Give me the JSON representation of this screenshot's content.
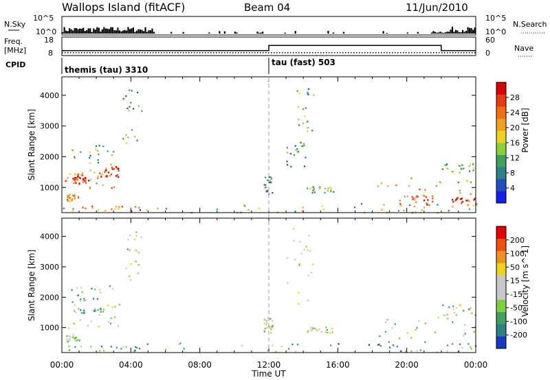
{
  "header": {
    "station": "Wallops Island (fitACF)",
    "beam": "Beam 04",
    "date": "11/Jun/2010"
  },
  "top_panels": {
    "nsky_label": "N.Sky",
    "nsky_ticks": [
      "10^5",
      "10^0"
    ],
    "nsearch_label": "N.Search",
    "nsearch_ticks": [
      "10^5",
      "10^0"
    ],
    "freq_label_1": "Freq.",
    "freq_label_2": "[MHz]",
    "freq_ticks": [
      "18",
      "8"
    ],
    "nave_label": "Nave",
    "nave_ticks": [
      "60",
      "0"
    ],
    "cpid_label": "CPID",
    "cpid_segments": [
      {
        "name": "themis (tau) 3310",
        "start_hour": 0,
        "end_hour": 12
      },
      {
        "name": "tau (fast) 503",
        "start_hour": 12,
        "end_hour": 24
      }
    ],
    "freq_series": [
      [
        0,
        10.5
      ],
      [
        12,
        10.5
      ],
      [
        12,
        13.5
      ],
      [
        22,
        13.5
      ],
      [
        22,
        10.5
      ],
      [
        24,
        10.5
      ]
    ],
    "nave_series": [
      [
        0,
        8
      ],
      [
        24,
        8
      ]
    ]
  },
  "chart_data": [
    {
      "type": "heatmap",
      "panel": "power",
      "ylabel": "Slant Range [km]",
      "xlabel": "",
      "x_ticks": [
        "00:00",
        "04:00",
        "08:00",
        "12:00",
        "16:00",
        "20:00",
        "00:00"
      ],
      "xlim": [
        0,
        24
      ],
      "ylim": [
        180,
        4600
      ],
      "y_ticks": [
        1000,
        2000,
        3000,
        4000
      ],
      "colorbar": {
        "label": "Power [dB]",
        "ticks": [
          "28",
          "24",
          "20",
          "16",
          "12",
          "8",
          "4"
        ],
        "colors": [
          "#1020e8",
          "#2050c0",
          "#2f7f86",
          "#40a060",
          "#8ccf3a",
          "#f0d020",
          "#f0a020",
          "#f07010",
          "#e83a10",
          "#d80000"
        ]
      },
      "regions": [
        {
          "x0": 0.1,
          "x1": 1.2,
          "y0": 1100,
          "y1": 1500,
          "level": 0.75
        },
        {
          "x0": 0.6,
          "x1": 1.6,
          "y0": 1150,
          "y1": 1350,
          "level": 0.9
        },
        {
          "x0": 1.5,
          "x1": 3.2,
          "y0": 1000,
          "y1": 1800,
          "level": 0.6
        },
        {
          "x0": 2.2,
          "x1": 3.4,
          "y0": 1300,
          "y1": 1700,
          "level": 0.85
        },
        {
          "x0": 0.2,
          "x1": 1.0,
          "y0": 550,
          "y1": 800,
          "level": 0.65
        },
        {
          "x0": 0.5,
          "x1": 3.0,
          "y0": 1800,
          "y1": 2400,
          "level": 0.35
        },
        {
          "x0": 3.5,
          "x1": 4.6,
          "y0": 2400,
          "y1": 4200,
          "level": 0.3
        },
        {
          "x0": 0.0,
          "x1": 4.8,
          "y0": 250,
          "y1": 420,
          "level": 0.75
        },
        {
          "x0": 4.8,
          "x1": 18.5,
          "y0": 200,
          "y1": 520,
          "level": 0.45
        },
        {
          "x0": 11.7,
          "x1": 12.2,
          "y0": 800,
          "y1": 1400,
          "level": 0.3
        },
        {
          "x0": 13.0,
          "x1": 14.2,
          "y0": 1700,
          "y1": 2500,
          "level": 0.35
        },
        {
          "x0": 13.6,
          "x1": 14.6,
          "y0": 2800,
          "y1": 4300,
          "level": 0.4
        },
        {
          "x0": 14.2,
          "x1": 15.8,
          "y0": 850,
          "y1": 1050,
          "level": 0.4
        },
        {
          "x0": 18.3,
          "x1": 24.0,
          "y0": 700,
          "y1": 1400,
          "level": 0.65
        },
        {
          "x0": 19.5,
          "x1": 21.5,
          "y0": 400,
          "y1": 800,
          "level": 0.85
        },
        {
          "x0": 22.5,
          "x1": 24.0,
          "y0": 450,
          "y1": 700,
          "level": 0.9
        },
        {
          "x0": 22.0,
          "x1": 24.0,
          "y0": 1400,
          "y1": 1800,
          "level": 0.4
        },
        {
          "x0": 18.5,
          "x1": 24.0,
          "y0": 200,
          "y1": 500,
          "level": 0.5
        }
      ]
    },
    {
      "type": "heatmap",
      "panel": "velocity",
      "ylabel": "Slant Range [km]",
      "xlabel": "Time UT",
      "x_ticks": [
        "00:00",
        "04:00",
        "08:00",
        "12:00",
        "16:00",
        "20:00",
        "00:00"
      ],
      "xlim": [
        0,
        24
      ],
      "ylim": [
        180,
        4600
      ],
      "y_ticks": [
        1000,
        2000,
        3000,
        4000
      ],
      "colorbar": {
        "label": "Velocity [m s^-1]",
        "ticks": [
          "200",
          "100",
          "50",
          "15",
          "-15",
          "-50",
          "-100",
          "-200"
        ],
        "colors": [
          "#1838c8",
          "#2f7f86",
          "#40a060",
          "#7cd040",
          "#c8c8c8",
          "#c8c8c8",
          "#f0d020",
          "#f09020",
          "#f05010",
          "#e00000"
        ]
      },
      "regions": [
        {
          "x0": 0.1,
          "x1": 3.4,
          "y0": 1000,
          "y1": 1800,
          "level": 0.45
        },
        {
          "x0": 0.2,
          "x1": 1.0,
          "y0": 550,
          "y1": 800,
          "level": 0.45
        },
        {
          "x0": 0.5,
          "x1": 3.0,
          "y0": 1800,
          "y1": 2400,
          "level": 0.35
        },
        {
          "x0": 0.6,
          "x1": 2.4,
          "y0": 1500,
          "y1": 1650,
          "level": 0.3
        },
        {
          "x0": 3.5,
          "x1": 4.6,
          "y0": 2400,
          "y1": 4200,
          "level": 0.45
        },
        {
          "x0": 0.0,
          "x1": 4.8,
          "y0": 250,
          "y1": 420,
          "level": 0.3
        },
        {
          "x0": 4.8,
          "x1": 18.5,
          "y0": 200,
          "y1": 520,
          "level": 0.3
        },
        {
          "x0": 11.7,
          "x1": 12.2,
          "y0": 800,
          "y1": 1400,
          "level": 0.45
        },
        {
          "x0": 13.0,
          "x1": 14.6,
          "y0": 1700,
          "y1": 4300,
          "level": 0.45
        },
        {
          "x0": 14.2,
          "x1": 15.8,
          "y0": 850,
          "y1": 1050,
          "level": 0.45
        },
        {
          "x0": 18.3,
          "x1": 24.0,
          "y0": 400,
          "y1": 1400,
          "level": 0.45
        },
        {
          "x0": 22.0,
          "x1": 24.0,
          "y0": 1400,
          "y1": 1800,
          "level": 0.45
        },
        {
          "x0": 18.5,
          "x1": 24.0,
          "y0": 200,
          "y1": 500,
          "level": 0.3
        }
      ]
    }
  ]
}
